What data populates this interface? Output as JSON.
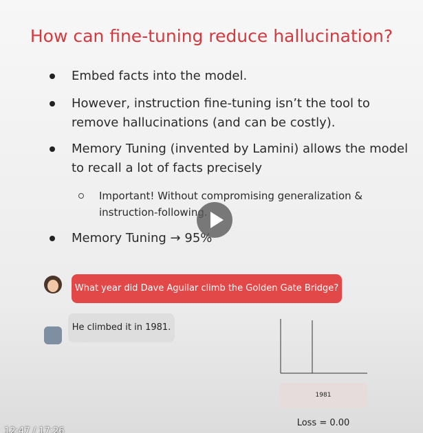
{
  "slide": {
    "title": "How can fine-tuning reduce hallucination?",
    "bullets": [
      "Embed facts into the model.",
      "However, instruction fine-tuning isn’t the tool to remove hallucinations (and can be costly).",
      "Memory Tuning (invented by Lamini) allows the model to recall a lot of facts precisely"
    ],
    "sub_bullet": "Important! Without compromising generalization & instruction-following.",
    "last_bullet": "Memory Tuning → 95%"
  },
  "chat": {
    "user_message": "What year did Dave Aguilar climb the Golden Gate Bridge?",
    "bot_message": "He climbed it in 1981."
  },
  "diagram": {
    "token": "1981",
    "loss": "Loss = 0.00"
  },
  "player": {
    "time": "12:47 / 17:26"
  }
}
